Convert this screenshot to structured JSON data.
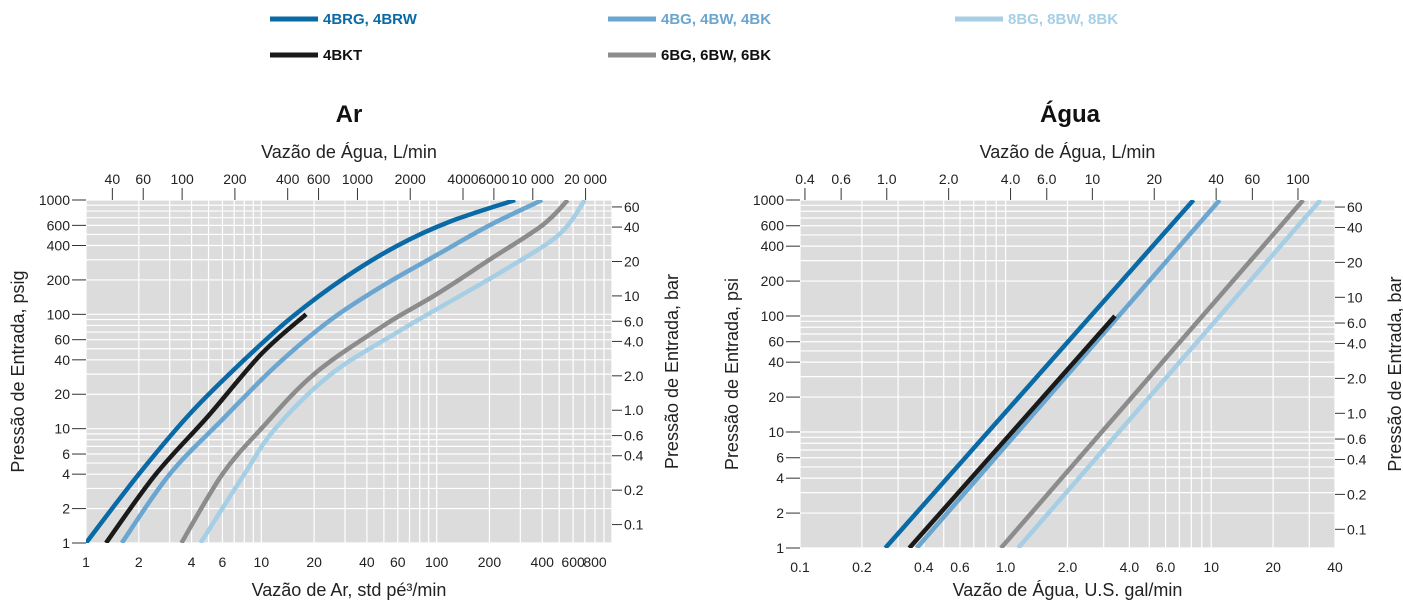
{
  "legend": [
    {
      "label": "4BRG, 4BRW",
      "color": "#0a6aa6"
    },
    {
      "label": "4BG, 4BW, 4BK",
      "color": "#6aa6cf"
    },
    {
      "label": "8BG, 8BW, 8BK",
      "color": "#a6cfe6"
    },
    {
      "label": "4BKT",
      "color": "#1a1a1a"
    },
    {
      "label": "6BG, 6BW, 6BK",
      "color": "#8c8c8c"
    }
  ],
  "chart_data": [
    {
      "type": "line",
      "title": "Ar",
      "xlabel": "Vazão de Ar, std pé³/min",
      "ylabel": "Pressão de Entrada, psig",
      "x2label": "Vazão de Água, L/min",
      "y2label": "Pressão de Entrada, bar",
      "xscale": "log",
      "yscale": "log",
      "xlim": [
        1,
        1000
      ],
      "ylim": [
        1,
        1000
      ],
      "x2lim": [
        28.3,
        28300
      ],
      "y2lim": [
        0.069,
        69
      ],
      "grid": true,
      "xticks": [
        1,
        2,
        4,
        6,
        10,
        20,
        40,
        60,
        100,
        200,
        400,
        600,
        800
      ],
      "xticklabels": [
        "1",
        "2",
        "4",
        "6",
        "10",
        "20",
        "40",
        "60",
        "100",
        "200",
        "400",
        "600",
        "800"
      ],
      "yticks": [
        1,
        2,
        4,
        6,
        10,
        20,
        40,
        60,
        100,
        200,
        400,
        600,
        1000
      ],
      "yticklabels": [
        "1",
        "2",
        "4",
        "6",
        "10",
        "20",
        "40",
        "60",
        "100",
        "200",
        "400",
        "600",
        "1000"
      ],
      "x2ticks": [
        40,
        60,
        100,
        200,
        400,
        600,
        1000,
        2000,
        4000,
        6000,
        10000,
        20000
      ],
      "x2ticklabels": [
        "40",
        "60",
        "100",
        "200",
        "400",
        "600",
        "1000",
        "2000",
        "4000",
        "6000",
        "10 000",
        "20 000"
      ],
      "y2ticks": [
        0.1,
        0.2,
        0.4,
        0.6,
        1.0,
        2.0,
        4.0,
        6.0,
        10,
        20,
        40,
        60
      ],
      "y2ticklabels": [
        "0.1",
        "0.2",
        "0.4",
        "0.6",
        "1.0",
        "2.0",
        "4.0",
        "6.0",
        "10",
        "20",
        "40",
        "60"
      ],
      "series": [
        {
          "name": "4BRG, 4BRW",
          "x": [
            1,
            2,
            4,
            8,
            15,
            30,
            60,
            120,
            280
          ],
          "y": [
            1,
            4,
            14,
            40,
            95,
            210,
            400,
            650,
            1000
          ]
        },
        {
          "name": "4BG, 4BW, 4BK",
          "x": [
            1.6,
            3,
            6,
            12,
            25,
            50,
            100,
            200,
            400
          ],
          "y": [
            1,
            4,
            12,
            35,
            90,
            180,
            330,
            600,
            1000
          ]
        },
        {
          "name": "4BKT",
          "x": [
            1.3,
            2.5,
            5,
            10,
            18
          ],
          "y": [
            1,
            4,
            13,
            45,
            100
          ]
        },
        {
          "name": "6BG, 6BW, 6BK",
          "x": [
            3.5,
            6,
            10,
            20,
            50,
            100,
            200,
            400,
            560
          ],
          "y": [
            1,
            4,
            10,
            30,
            80,
            150,
            300,
            600,
            1000
          ]
        },
        {
          "name": "8BG, 8BW, 8BK",
          "x": [
            4.5,
            8,
            12,
            25,
            60,
            120,
            250,
            500,
            700
          ],
          "y": [
            1,
            4,
            10,
            30,
            70,
            130,
            250,
            500,
            1000
          ]
        }
      ]
    },
    {
      "type": "line",
      "title": "Água",
      "xlabel": "Vazão de Água, U.S. gal/min",
      "ylabel": "Pressão de Entrada, psi",
      "x2label": "Vazão de Água, L/min",
      "y2label": "Pressão de Entrada, bar",
      "xscale": "log",
      "yscale": "log",
      "xlim": [
        0.1,
        40
      ],
      "ylim": [
        1,
        1000
      ],
      "x2lim": [
        0.3785,
        151.4
      ],
      "y2lim": [
        0.069,
        69
      ],
      "grid": true,
      "xticks": [
        0.1,
        0.2,
        0.4,
        0.6,
        1.0,
        2.0,
        4.0,
        6.0,
        10,
        20,
        40
      ],
      "xticklabels": [
        "0.1",
        "0.2",
        "0.4",
        "0.6",
        "1.0",
        "2.0",
        "4.0",
        "6.0",
        "10",
        "20",
        "40"
      ],
      "yticks": [
        1,
        2,
        4,
        6,
        10,
        20,
        40,
        60,
        100,
        200,
        400,
        600,
        1000
      ],
      "yticklabels": [
        "1",
        "2",
        "4",
        "6",
        "10",
        "20",
        "40",
        "60",
        "100",
        "200",
        "400",
        "600",
        "1000"
      ],
      "x2ticks": [
        0.4,
        0.6,
        1.0,
        2.0,
        4.0,
        6.0,
        10,
        20,
        40,
        60,
        100
      ],
      "x2ticklabels": [
        "0.4",
        "0.6",
        "1.0",
        "2.0",
        "4.0",
        "6.0",
        "10",
        "20",
        "40",
        "60",
        "100"
      ],
      "y2ticks": [
        0.1,
        0.2,
        0.4,
        0.6,
        1.0,
        2.0,
        4.0,
        6.0,
        10,
        20,
        40,
        60
      ],
      "y2ticklabels": [
        "0.1",
        "0.2",
        "0.4",
        "0.6",
        "1.0",
        "2.0",
        "4.0",
        "6.0",
        "10",
        "20",
        "40",
        "60"
      ],
      "series": [
        {
          "name": "4BRG, 4BRW",
          "x": [
            0.26,
            8.2
          ],
          "y": [
            1,
            1000
          ]
        },
        {
          "name": "4BG, 4BW, 4BK",
          "x": [
            0.37,
            11
          ],
          "y": [
            1,
            1000
          ]
        },
        {
          "name": "4BKT",
          "x": [
            0.34,
            3.4
          ],
          "y": [
            1,
            100
          ]
        },
        {
          "name": "6BG, 6BW, 6BK",
          "x": [
            0.95,
            28
          ],
          "y": [
            1,
            1000
          ]
        },
        {
          "name": "8BG, 8BW, 8BK",
          "x": [
            1.15,
            34
          ],
          "y": [
            1,
            1000
          ]
        }
      ]
    }
  ]
}
